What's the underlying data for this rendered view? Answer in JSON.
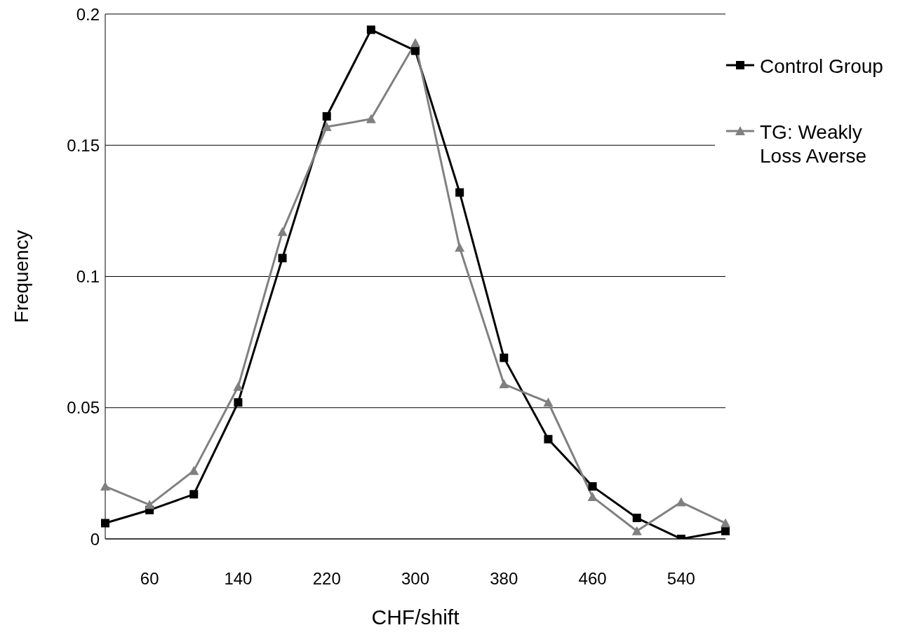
{
  "chart_data": {
    "type": "line",
    "xlabel": "CHF/shift",
    "ylabel": "Frequency",
    "categories": [
      null,
      "60",
      null,
      "140",
      null,
      "220",
      null,
      "300",
      null,
      "380",
      null,
      "460",
      null,
      "540",
      null
    ],
    "series": [
      {
        "name": "Control Group",
        "color": "#000000",
        "marker": "square",
        "values": [
          0.006,
          0.011,
          0.017,
          0.052,
          0.107,
          0.161,
          0.194,
          0.186,
          0.132,
          0.069,
          0.038,
          0.02,
          0.008,
          0.0,
          0.003
        ]
      },
      {
        "name": "TG: Weakly Loss Averse",
        "color": "#808080",
        "marker": "triangle",
        "values": [
          0.02,
          0.013,
          0.026,
          0.058,
          0.117,
          0.157,
          0.16,
          0.189,
          0.111,
          0.059,
          0.052,
          0.016,
          0.003,
          0.014,
          0.006
        ]
      }
    ],
    "ylim": [
      0,
      0.2
    ],
    "yticks": [
      0,
      0.05,
      0.1,
      0.15,
      0.2
    ],
    "grid": "y",
    "legend": "top right",
    "line_style": "solid"
  }
}
